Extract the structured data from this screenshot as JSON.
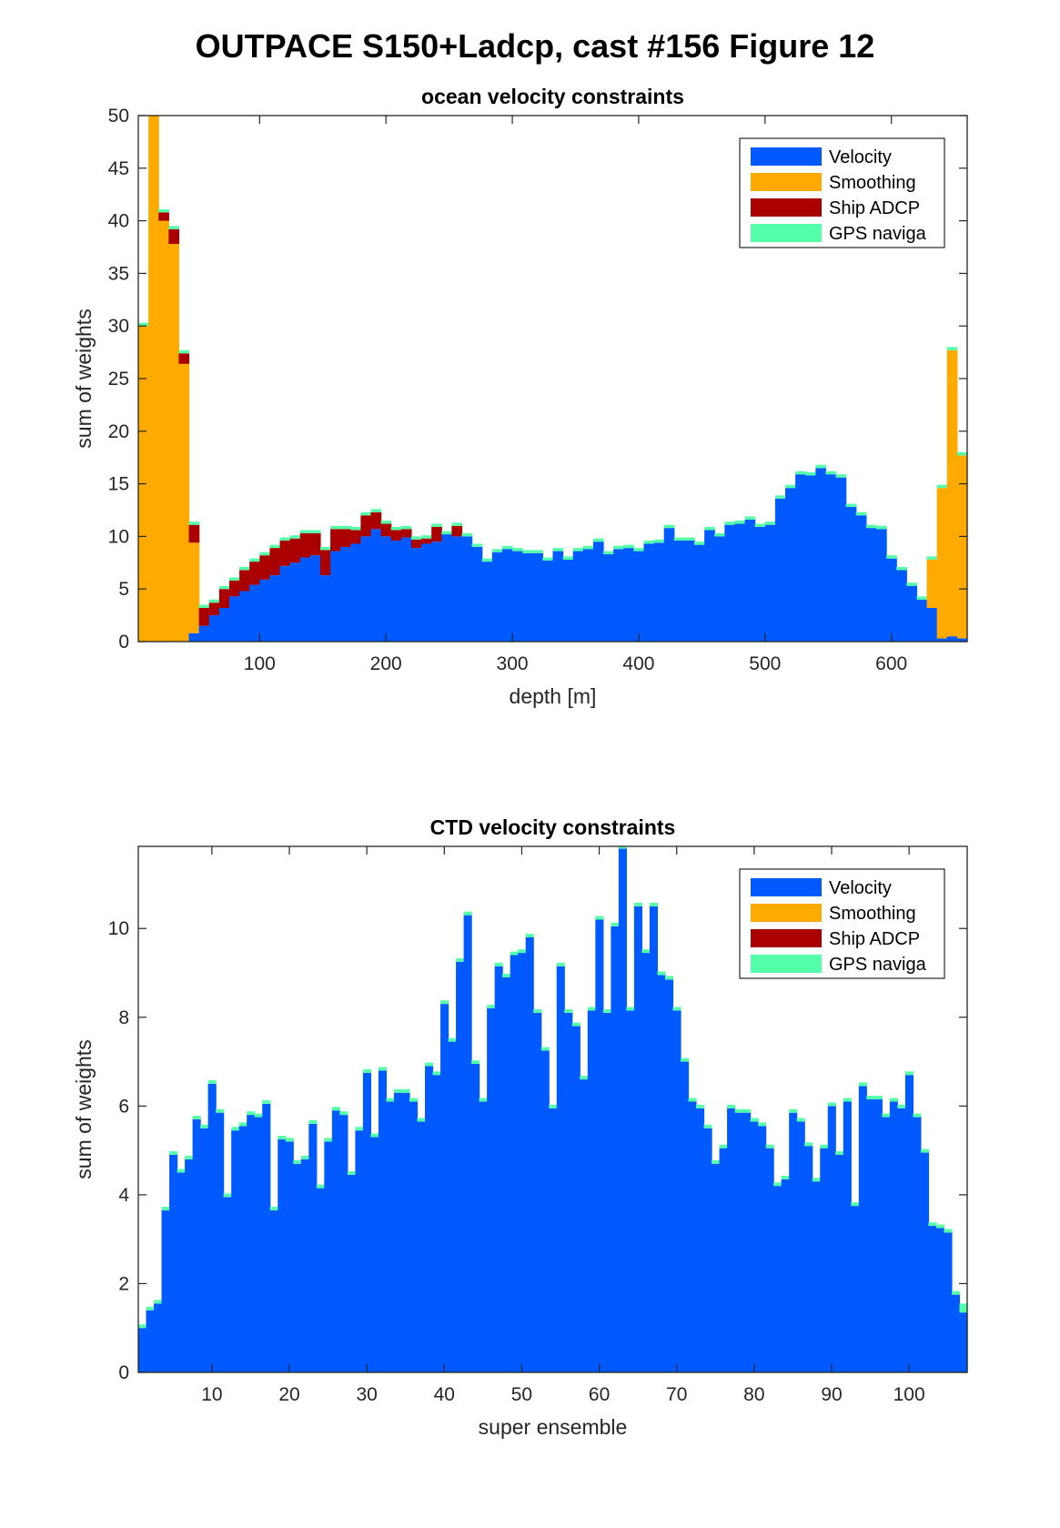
{
  "figure": {
    "title": "OUTPACE S150+Ladcp, cast #156  Figure 12"
  },
  "colors": {
    "velocity": "#005aff",
    "smoothing": "#ffaa00",
    "ship_adcp": "#aa0000",
    "gps": "#55ffaa"
  },
  "chart_data": [
    {
      "type": "bar",
      "stacked": true,
      "title": "ocean velocity constraints",
      "xlabel": "depth [m]",
      "ylabel": "sum of weights",
      "xlim": [
        4,
        660
      ],
      "ylim": [
        0,
        50
      ],
      "xticks": [
        100,
        200,
        300,
        400,
        500,
        600
      ],
      "yticks": [
        0,
        5,
        10,
        15,
        20,
        25,
        30,
        35,
        40,
        45,
        50
      ],
      "bin_width": 8,
      "grid": false,
      "legend_position": "top-right",
      "legend": [
        "Velocity",
        "Smoothing",
        "Ship ADCP",
        "GPS naviga"
      ],
      "x": [
        8,
        16,
        24,
        32,
        40,
        48,
        56,
        64,
        72,
        80,
        88,
        96,
        104,
        112,
        120,
        128,
        136,
        144,
        152,
        160,
        168,
        176,
        184,
        192,
        200,
        208,
        216,
        224,
        232,
        240,
        248,
        256,
        264,
        272,
        280,
        288,
        296,
        304,
        312,
        320,
        328,
        336,
        344,
        352,
        360,
        368,
        376,
        384,
        392,
        400,
        408,
        416,
        424,
        432,
        440,
        448,
        456,
        464,
        472,
        480,
        488,
        496,
        504,
        512,
        520,
        528,
        536,
        544,
        552,
        560,
        568,
        576,
        584,
        592,
        600,
        608,
        616,
        624,
        632,
        640,
        648,
        656
      ],
      "series": [
        {
          "name": "Velocity",
          "values": [
            0,
            0,
            0,
            0,
            0,
            0.8,
            1.5,
            2.5,
            3.2,
            4.3,
            4.8,
            5.4,
            5.9,
            6.3,
            7.2,
            7.5,
            8.0,
            8.2,
            6.3,
            8.6,
            9.0,
            9.3,
            10.0,
            10.7,
            10.0,
            9.6,
            9.9,
            8.9,
            9.3,
            9.5,
            10.2,
            10.0,
            10.0,
            9.0,
            7.6,
            8.5,
            8.8,
            8.6,
            8.4,
            8.4,
            7.7,
            8.6,
            7.8,
            8.6,
            8.8,
            9.5,
            8.3,
            8.8,
            8.9,
            8.6,
            9.3,
            9.4,
            10.8,
            9.6,
            9.6,
            9.2,
            10.6,
            10.0,
            11.1,
            11.2,
            11.6,
            10.9,
            11.1,
            13.6,
            14.6,
            15.9,
            15.8,
            16.5,
            15.9,
            15.6,
            12.8,
            12.0,
            10.8,
            10.7,
            7.9,
            6.8,
            5.3,
            4.0,
            3.2,
            0.3,
            0.5,
            0.3
          ]
        },
        {
          "name": "Smoothing",
          "values": [
            30,
            50,
            40,
            37.8,
            26.4,
            8.6,
            0,
            0,
            0,
            0,
            0,
            0,
            0,
            0,
            0,
            0,
            0,
            0,
            0,
            0,
            0,
            0,
            0,
            0,
            0,
            0,
            0,
            0,
            0,
            0,
            0,
            0,
            0,
            0,
            0,
            0,
            0,
            0,
            0,
            0,
            0,
            0,
            0,
            0,
            0,
            0,
            0,
            0,
            0,
            0,
            0,
            0,
            0,
            0,
            0,
            0,
            0,
            0,
            0,
            0,
            0,
            0,
            0,
            0,
            0,
            0,
            0,
            0,
            0,
            0,
            0,
            0,
            0,
            0,
            0,
            0,
            0,
            0,
            4.6,
            14.3,
            27.2,
            17.4
          ]
        },
        {
          "name": "Ship ADCP",
          "values": [
            0,
            0,
            0.8,
            1.4,
            1.0,
            1.7,
            1.7,
            1.2,
            1.8,
            1.5,
            2.0,
            2.2,
            2.3,
            2.6,
            2.4,
            2.3,
            2.3,
            2.1,
            2.4,
            2.1,
            1.7,
            1.3,
            2.0,
            1.6,
            1.2,
            1.0,
            0.8,
            0.8,
            0.5,
            1.4,
            0,
            1.0,
            0,
            0,
            0,
            0,
            0,
            0,
            0,
            0,
            0,
            0,
            0,
            0,
            0,
            0,
            0,
            0,
            0,
            0,
            0,
            0,
            0,
            0,
            0,
            0,
            0,
            0,
            0,
            0,
            0,
            0,
            0,
            0,
            0,
            0,
            0,
            0,
            0,
            0,
            0,
            0,
            0,
            0,
            0,
            0,
            0,
            0,
            0,
            0,
            0,
            0
          ]
        },
        {
          "name": "GPS naviga",
          "values": [
            0.3,
            0.3,
            0.3,
            0.3,
            0.3,
            0.3,
            0.3,
            0.3,
            0.3,
            0.3,
            0.3,
            0.3,
            0.3,
            0.3,
            0.3,
            0.3,
            0.3,
            0.3,
            0.3,
            0.3,
            0.3,
            0.3,
            0.3,
            0.3,
            0.3,
            0.3,
            0.3,
            0.3,
            0.3,
            0.3,
            0.3,
            0.3,
            0.3,
            0.3,
            0.3,
            0.3,
            0.3,
            0.3,
            0.3,
            0.3,
            0.3,
            0.3,
            0.3,
            0.3,
            0.3,
            0.3,
            0.3,
            0.3,
            0.3,
            0.3,
            0.3,
            0.3,
            0.3,
            0.3,
            0.3,
            0.3,
            0.3,
            0.3,
            0.3,
            0.3,
            0.3,
            0.3,
            0.3,
            0.3,
            0.3,
            0.3,
            0.3,
            0.3,
            0.3,
            0.3,
            0.3,
            0.3,
            0.3,
            0.3,
            0.3,
            0.3,
            0.3,
            0.3,
            0.3,
            0.3,
            0.3,
            0.3
          ]
        }
      ]
    },
    {
      "type": "bar",
      "stacked": true,
      "title": "CTD velocity constraints",
      "xlabel": "super ensemble",
      "ylabel": "sum of weights",
      "xlim": [
        0.5,
        107.5
      ],
      "ylim": [
        0,
        11.85
      ],
      "xticks": [
        10,
        20,
        30,
        40,
        50,
        60,
        70,
        80,
        90,
        100
      ],
      "yticks": [
        0,
        2,
        4,
        6,
        8,
        10
      ],
      "bin_width": 1,
      "grid": false,
      "legend_position": "top-right",
      "legend": [
        "Velocity",
        "Smoothing",
        "Ship ADCP",
        "GPS naviga"
      ],
      "series": [
        {
          "name": "Velocity",
          "values": [
            1.0,
            1.4,
            1.55,
            3.65,
            4.9,
            4.5,
            4.8,
            5.7,
            5.5,
            6.5,
            5.85,
            3.95,
            5.45,
            5.55,
            5.8,
            5.75,
            6.05,
            3.65,
            5.25,
            5.2,
            4.7,
            4.8,
            5.6,
            4.15,
            5.2,
            5.9,
            5.8,
            4.45,
            5.45,
            6.75,
            5.3,
            6.8,
            6.1,
            6.3,
            6.3,
            6.1,
            5.65,
            6.9,
            6.7,
            8.3,
            7.45,
            9.25,
            10.3,
            6.95,
            6.1,
            8.2,
            9.15,
            8.9,
            9.4,
            9.45,
            9.8,
            8.1,
            7.25,
            5.95,
            9.15,
            8.1,
            7.8,
            6.6,
            8.15,
            10.2,
            8.1,
            10.05,
            11.8,
            8.15,
            10.5,
            9.45,
            10.5,
            8.95,
            8.85,
            8.15,
            7.0,
            6.1,
            5.95,
            5.5,
            4.7,
            5.05,
            5.95,
            5.85,
            5.85,
            5.65,
            5.55,
            5.05,
            4.2,
            4.35,
            5.85,
            5.65,
            5.1,
            4.3,
            5.05,
            6.0,
            4.9,
            6.1,
            3.75,
            6.45,
            6.15,
            6.15,
            5.75,
            6.1,
            5.95,
            6.7,
            5.75,
            4.95,
            3.3,
            3.25,
            3.15,
            1.75,
            1.35
          ]
        },
        {
          "name": "Smoothing",
          "values": []
        },
        {
          "name": "Ship ADCP",
          "values": []
        },
        {
          "name": "GPS naviga",
          "values": [
            0.08,
            0.08,
            0.08,
            0.08,
            0.08,
            0.08,
            0.08,
            0.08,
            0.08,
            0.08,
            0.08,
            0.08,
            0.08,
            0.08,
            0.08,
            0.08,
            0.08,
            0.08,
            0.08,
            0.08,
            0.08,
            0.08,
            0.08,
            0.08,
            0.08,
            0.08,
            0.08,
            0.08,
            0.08,
            0.08,
            0.08,
            0.08,
            0.08,
            0.08,
            0.08,
            0.08,
            0.08,
            0.08,
            0.08,
            0.08,
            0.08,
            0.08,
            0.08,
            0.08,
            0.08,
            0.08,
            0.08,
            0.08,
            0.08,
            0.08,
            0.08,
            0.08,
            0.08,
            0.08,
            0.08,
            0.08,
            0.08,
            0.08,
            0.08,
            0.08,
            0.08,
            0.08,
            0.08,
            0.08,
            0.08,
            0.08,
            0.08,
            0.08,
            0.08,
            0.08,
            0.08,
            0.08,
            0.08,
            0.08,
            0.08,
            0.08,
            0.08,
            0.08,
            0.08,
            0.08,
            0.08,
            0.08,
            0.08,
            0.08,
            0.08,
            0.08,
            0.08,
            0.08,
            0.08,
            0.08,
            0.08,
            0.08,
            0.08,
            0.08,
            0.08,
            0.08,
            0.08,
            0.08,
            0.08,
            0.08,
            0.08,
            0.08,
            0.08,
            0.08,
            0.08,
            0.08,
            0.2
          ]
        }
      ]
    }
  ]
}
